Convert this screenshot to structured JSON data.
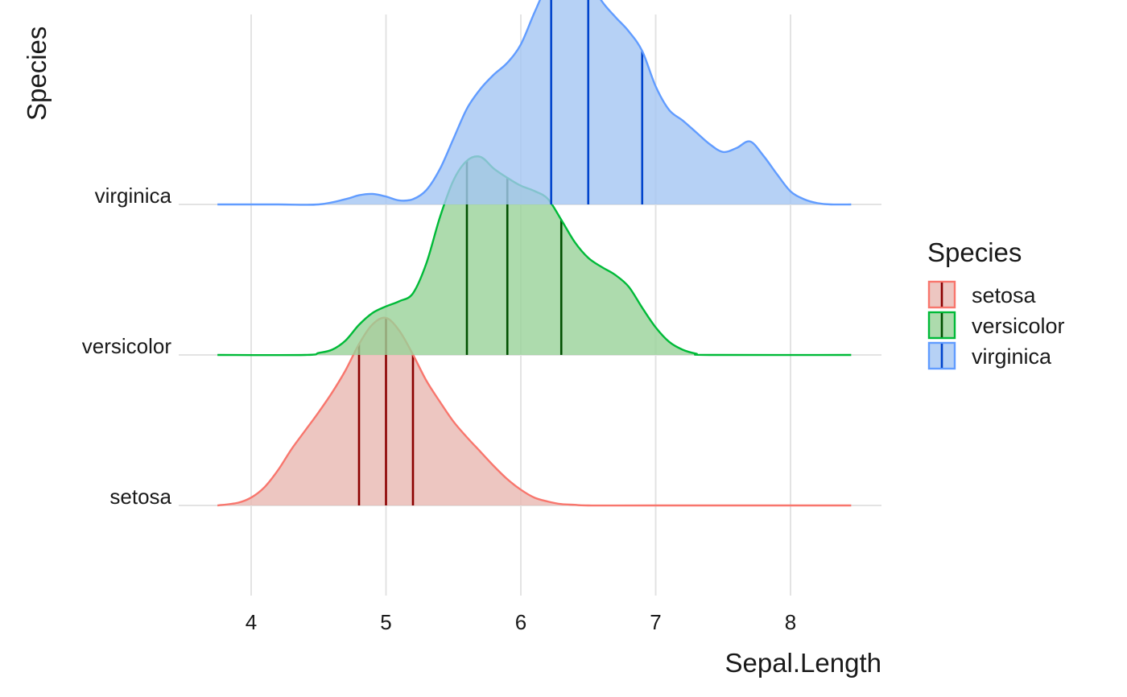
{
  "chart_data": {
    "type": "ridgeline",
    "xlabel": "Sepal.Length",
    "ylabel": "Species",
    "xlim": [
      3.75,
      8.45
    ],
    "x_ticks": [
      4,
      5,
      6,
      7,
      8
    ],
    "grid": true,
    "legend": {
      "title": "Species",
      "position": "right"
    },
    "categories": [
      "setosa",
      "versicolor",
      "virginica"
    ],
    "series": [
      {
        "name": "setosa",
        "color": "#F8766D",
        "fill": "#E8B8B2",
        "quantile_color": "#8B0000",
        "quantiles": [
          4.8,
          5.0,
          5.2
        ],
        "density_x": [
          3.75,
          3.9,
          4.0,
          4.1,
          4.2,
          4.3,
          4.4,
          4.5,
          4.6,
          4.7,
          4.8,
          4.9,
          5.0,
          5.1,
          5.2,
          5.3,
          5.4,
          5.5,
          5.6,
          5.7,
          5.8,
          5.9,
          6.0,
          6.1,
          6.2,
          6.3,
          6.4,
          6.5,
          7.0,
          8.45
        ],
        "density_y": [
          0.0,
          0.02,
          0.06,
          0.14,
          0.27,
          0.43,
          0.57,
          0.71,
          0.86,
          1.03,
          1.23,
          1.38,
          1.43,
          1.33,
          1.15,
          0.95,
          0.79,
          0.64,
          0.52,
          0.41,
          0.3,
          0.2,
          0.12,
          0.06,
          0.03,
          0.01,
          0.005,
          0.0,
          0.0,
          0.0
        ]
      },
      {
        "name": "versicolor",
        "color": "#00BA38",
        "fill": "#98D298",
        "quantile_color": "#005000",
        "quantiles": [
          5.6,
          5.9,
          6.3
        ],
        "density_x": [
          3.75,
          4.4,
          4.5,
          4.6,
          4.7,
          4.8,
          4.9,
          5.0,
          5.1,
          5.2,
          5.3,
          5.4,
          5.5,
          5.6,
          5.7,
          5.8,
          5.9,
          6.0,
          6.1,
          6.2,
          6.3,
          6.4,
          6.5,
          6.6,
          6.7,
          6.8,
          6.9,
          7.0,
          7.1,
          7.2,
          7.3,
          7.4,
          8.45
        ],
        "density_y": [
          0.0,
          0.0,
          0.015,
          0.04,
          0.11,
          0.23,
          0.32,
          0.37,
          0.41,
          0.47,
          0.7,
          1.05,
          1.33,
          1.48,
          1.51,
          1.42,
          1.35,
          1.29,
          1.25,
          1.19,
          1.03,
          0.86,
          0.74,
          0.67,
          0.61,
          0.52,
          0.36,
          0.21,
          0.1,
          0.04,
          0.01,
          0.0,
          0.0
        ]
      },
      {
        "name": "virginica",
        "color": "#619CFF",
        "fill": "#A4C6F2",
        "quantile_color": "#0044CC",
        "quantiles": [
          6.225,
          6.5,
          6.9
        ],
        "density_x": [
          3.75,
          4.2,
          4.5,
          4.7,
          4.8,
          4.9,
          5.0,
          5.1,
          5.2,
          5.3,
          5.4,
          5.5,
          5.6,
          5.7,
          5.8,
          5.9,
          6.0,
          6.1,
          6.2,
          6.3,
          6.4,
          6.5,
          6.6,
          6.7,
          6.8,
          6.9,
          7.0,
          7.1,
          7.2,
          7.3,
          7.4,
          7.5,
          7.6,
          7.7,
          7.8,
          7.9,
          8.0,
          8.1,
          8.2,
          8.3,
          8.45
        ],
        "density_y": [
          0.0,
          0.0,
          0.0,
          0.04,
          0.07,
          0.08,
          0.06,
          0.03,
          0.04,
          0.11,
          0.27,
          0.5,
          0.73,
          0.88,
          0.99,
          1.08,
          1.22,
          1.46,
          1.68,
          1.81,
          1.84,
          1.73,
          1.55,
          1.43,
          1.32,
          1.17,
          0.9,
          0.72,
          0.64,
          0.55,
          0.46,
          0.4,
          0.43,
          0.48,
          0.37,
          0.23,
          0.1,
          0.04,
          0.01,
          0.0,
          0.0
        ]
      }
    ]
  }
}
